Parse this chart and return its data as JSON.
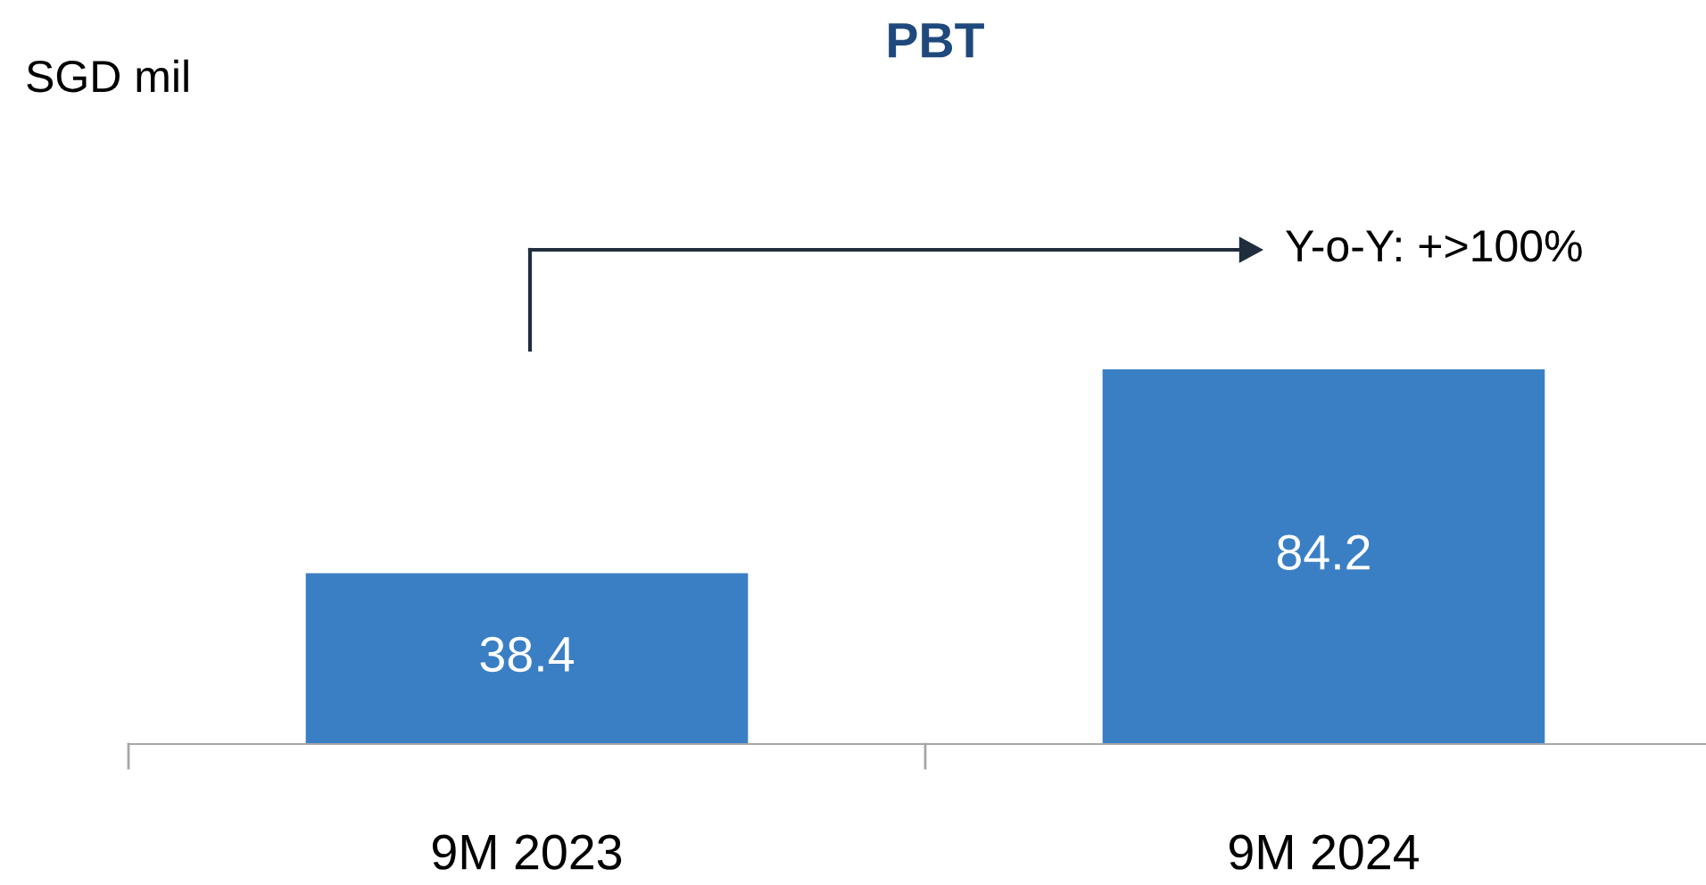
{
  "chart_data": {
    "type": "bar",
    "title": "PBT",
    "categories": [
      "9M 2023",
      "9M 2024"
    ],
    "values": [
      38.4,
      84.2
    ],
    "color": "#3a7fc4",
    "data_labels": true,
    "annotations": [
      "SGD mil",
      "Y-o-Y: +>100%"
    ],
    "legend": false,
    "grid": false
  }
}
